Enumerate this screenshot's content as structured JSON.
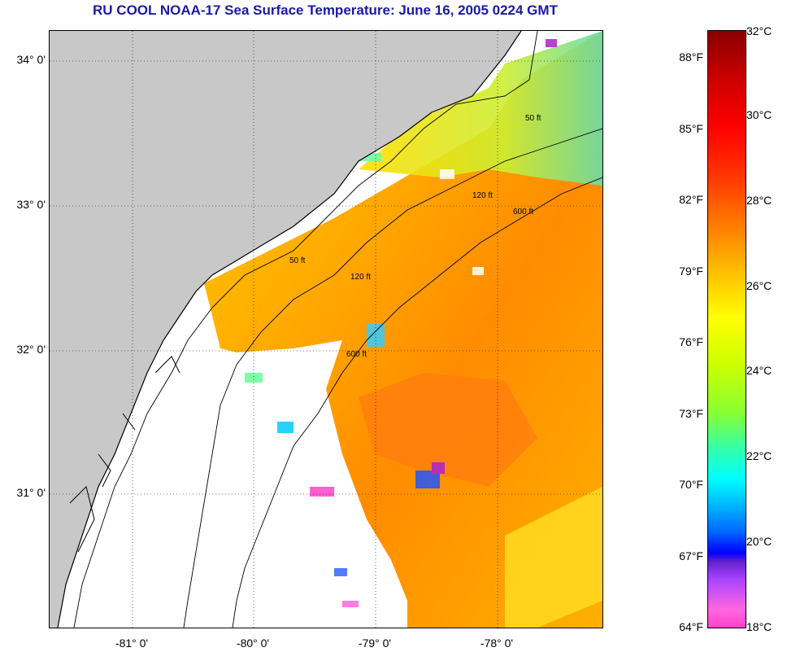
{
  "title": "RU COOL  NOAA-17  Sea Surface Temperature:  June 16, 2005 0224 GMT",
  "map": {
    "lat_labels": [
      "34° 0'",
      "33° 0'",
      "32° 0'",
      "31° 0'"
    ],
    "lon_labels": [
      "-81° 0'",
      "-80° 0'",
      "-79° 0'",
      "-78° 0'"
    ],
    "contour_labels": [
      "50 ft",
      "120 ft",
      "600 ft"
    ],
    "colors": {
      "land": "#c8c8c8",
      "no_data": "#ffffff",
      "warm": "#ff9900",
      "mid": "#ffcc00"
    }
  },
  "colorbar": {
    "fahrenheit": [
      "88°F",
      "85°F",
      "82°F",
      "79°F",
      "76°F",
      "73°F",
      "70°F",
      "67°F",
      "64°F"
    ],
    "celsius": [
      "32°C",
      "30°C",
      "28°C",
      "26°C",
      "24°C",
      "22°C",
      "20°C",
      "18°C"
    ]
  }
}
